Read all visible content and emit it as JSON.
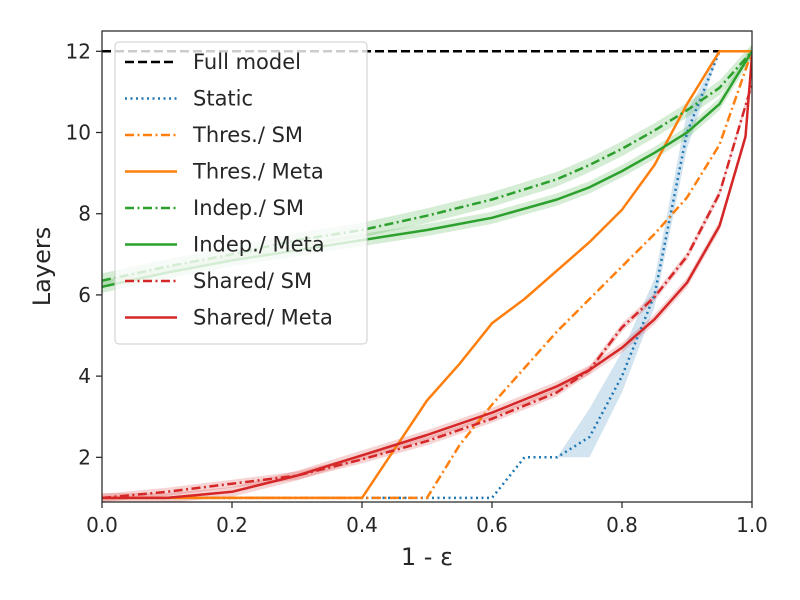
{
  "chart_data": {
    "type": "line",
    "title": "",
    "xlabel": "1 - ε",
    "ylabel": "Layers",
    "xlim": [
      0.0,
      1.0
    ],
    "ylim": [
      0.9,
      12.5
    ],
    "xticks": [
      0.0,
      0.2,
      0.4,
      0.6,
      0.8,
      1.0
    ],
    "xtick_labels": [
      "0.0",
      "0.2",
      "0.4",
      "0.6",
      "0.8",
      "1.0"
    ],
    "yticks": [
      2,
      4,
      6,
      8,
      10,
      12
    ],
    "ytick_labels": [
      "2",
      "4",
      "6",
      "8",
      "10",
      "12"
    ],
    "grid": false,
    "legend_position": "top-left",
    "series": [
      {
        "name": "Full model",
        "color": "#000000",
        "dash": "dashed",
        "x": [
          0.0,
          1.0
        ],
        "y": [
          12,
          12
        ]
      },
      {
        "name": "Static",
        "color": "#1f77b4",
        "dash": "dotted",
        "x": [
          0.0,
          0.6,
          0.65,
          0.7,
          0.75,
          0.8,
          0.85,
          0.9,
          0.95,
          1.0
        ],
        "y": [
          1,
          1,
          2,
          2,
          2.5,
          4,
          6,
          10,
          12,
          12
        ],
        "band_lower": [
          1,
          1,
          2,
          2,
          2,
          3.6,
          5.7,
          9.6,
          12,
          12
        ],
        "band_upper": [
          1,
          1,
          2,
          2,
          3.2,
          4.6,
          6.4,
          10.5,
          12,
          12
        ]
      },
      {
        "name": "Thres./ SM",
        "color": "#ff7f0e",
        "dash": "dashdot",
        "x": [
          0.0,
          0.5,
          0.55,
          0.6,
          0.65,
          0.7,
          0.75,
          0.8,
          0.85,
          0.9,
          0.95,
          1.0
        ],
        "y": [
          1,
          1,
          2.3,
          3.3,
          4.2,
          5.1,
          5.9,
          6.7,
          7.5,
          8.4,
          9.7,
          12
        ]
      },
      {
        "name": "Thres./ Meta",
        "color": "#ff7f0e",
        "dash": "solid",
        "x": [
          0.0,
          0.4,
          0.45,
          0.5,
          0.55,
          0.6,
          0.65,
          0.7,
          0.75,
          0.8,
          0.85,
          0.9,
          0.95,
          1.0
        ],
        "y": [
          1,
          1,
          2.2,
          3.4,
          4.3,
          5.3,
          5.9,
          6.6,
          7.3,
          8.1,
          9.2,
          10.7,
          12,
          12
        ]
      },
      {
        "name": "Indep./ SM",
        "color": "#2ca02c",
        "dash": "dashdot",
        "x": [
          0.0,
          0.1,
          0.2,
          0.3,
          0.4,
          0.5,
          0.6,
          0.7,
          0.75,
          0.8,
          0.85,
          0.9,
          0.95,
          1.0
        ],
        "y": [
          6.35,
          6.7,
          7.0,
          7.35,
          7.6,
          7.95,
          8.35,
          8.85,
          9.2,
          9.6,
          10.05,
          10.55,
          11.1,
          12
        ],
        "band_width": 0.18
      },
      {
        "name": "Indep./ Meta",
        "color": "#2ca02c",
        "dash": "solid",
        "x": [
          0.0,
          0.1,
          0.2,
          0.3,
          0.4,
          0.5,
          0.6,
          0.7,
          0.75,
          0.8,
          0.85,
          0.9,
          0.95,
          1.0
        ],
        "y": [
          6.2,
          6.55,
          6.85,
          7.1,
          7.35,
          7.6,
          7.9,
          8.35,
          8.65,
          9.05,
          9.5,
          10.0,
          10.7,
          12
        ],
        "band_width": 0.15
      },
      {
        "name": "Shared/ SM",
        "color": "#d62728",
        "dash": "dashdot",
        "x": [
          0.0,
          0.1,
          0.2,
          0.3,
          0.4,
          0.5,
          0.6,
          0.7,
          0.75,
          0.8,
          0.85,
          0.9,
          0.95,
          1.0
        ],
        "y": [
          1.0,
          1.15,
          1.35,
          1.55,
          1.95,
          2.4,
          2.95,
          3.6,
          4.15,
          5.2,
          5.95,
          6.95,
          8.5,
          11.2
        ],
        "band_width": 0.1
      },
      {
        "name": "Shared/ Meta",
        "color": "#d62728",
        "dash": "solid",
        "x": [
          0.0,
          0.1,
          0.2,
          0.3,
          0.4,
          0.5,
          0.6,
          0.7,
          0.75,
          0.8,
          0.85,
          0.9,
          0.95,
          0.99,
          1.0
        ],
        "y": [
          1.0,
          1.0,
          1.15,
          1.55,
          2.05,
          2.55,
          3.1,
          3.75,
          4.15,
          4.7,
          5.4,
          6.3,
          7.7,
          9.9,
          11.9
        ],
        "band_width": 0.12
      }
    ]
  }
}
